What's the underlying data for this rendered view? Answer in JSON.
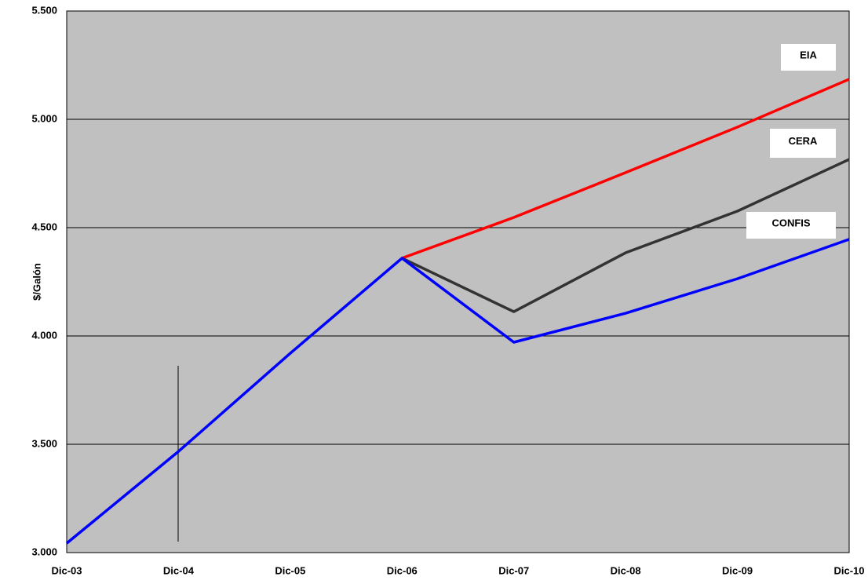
{
  "chart_data": {
    "type": "line",
    "y_label": "$/Galón",
    "categories": [
      "Dic-03",
      "Dic-04",
      "Dic-05",
      "Dic-06",
      "Dic-07",
      "Dic-08",
      "Dic-09",
      "Dic-10"
    ],
    "series": [
      {
        "name": "EIA",
        "color": "#ff0000",
        "values": [
          null,
          null,
          null,
          4359,
          4547,
          4754,
          4964,
          5185
        ]
      },
      {
        "name": "CERA",
        "color": "#333333",
        "values": [
          null,
          null,
          null,
          4359,
          4112,
          4384,
          4576,
          4815
        ]
      },
      {
        "name": "CONFIS",
        "color": "#0000ff",
        "values": [
          3043,
          3467,
          3920,
          4359,
          3971,
          4105,
          4264,
          4446
        ]
      }
    ],
    "ylim": [
      3000,
      5500
    ],
    "yticks": [
      {
        "value": 3000,
        "label": "3.000"
      },
      {
        "value": 3500,
        "label": "3.500"
      },
      {
        "value": 4000,
        "label": "4.000"
      },
      {
        "value": 4500,
        "label": "4.500"
      },
      {
        "value": 5000,
        "label": "5.000"
      },
      {
        "value": 5500,
        "label": "5.500"
      }
    ],
    "grid": true
  }
}
